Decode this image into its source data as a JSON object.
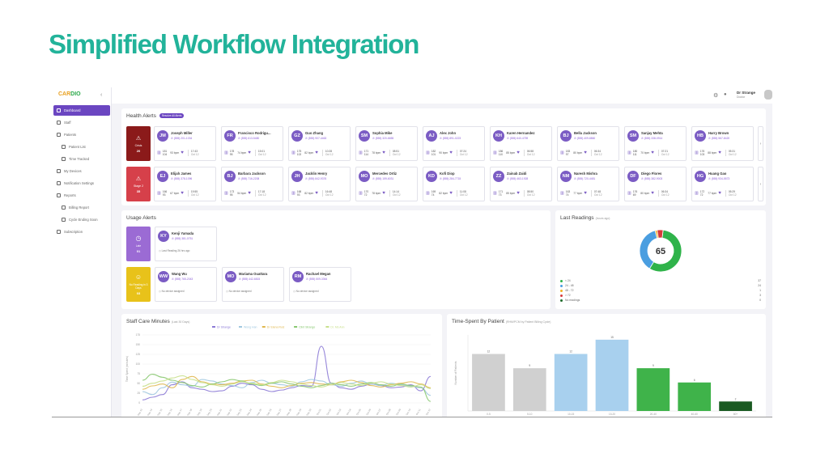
{
  "slide_title": "Simplified Workflow Integration",
  "sidebar": {
    "logo_a": "CAR",
    "logo_b": "DIO",
    "items": [
      {
        "label": "Dashboard",
        "active": true,
        "sub": false
      },
      {
        "label": "Staff",
        "active": false,
        "sub": false
      },
      {
        "label": "Patients",
        "active": false,
        "sub": false
      },
      {
        "label": "Patient List",
        "active": false,
        "sub": true
      },
      {
        "label": "Time Tracked",
        "active": false,
        "sub": true
      },
      {
        "label": "My Devices",
        "active": false,
        "sub": false
      },
      {
        "label": "Notification Settings",
        "active": false,
        "sub": false
      },
      {
        "label": "Reports",
        "active": false,
        "sub": false
      },
      {
        "label": "Billing Report",
        "active": false,
        "sub": true
      },
      {
        "label": "Cycle Ending Soon",
        "active": false,
        "sub": true
      },
      {
        "label": "Subscription",
        "active": false,
        "sub": false
      }
    ]
  },
  "topbar": {
    "user_name": "Dr Strange",
    "user_role": "Doctor"
  },
  "health_alerts": {
    "title": "Health Alerts",
    "pill": "Resolve All Alerts",
    "categories": [
      {
        "label": "Crisis",
        "count": "20",
        "color": "#8b1a1a"
      },
      {
        "label": "Stage 2",
        "count": "35",
        "color": "#d6404a"
      }
    ],
    "rows": [
      [
        {
          "initials": "JM",
          "name": "Joseph Miller",
          "phone": "(555) 201-1034",
          "sys": "181",
          "dia": "104",
          "hr": "93 bpm",
          "time": "17:43",
          "date": "Oct 12"
        },
        {
          "initials": "FR",
          "name": "Francisco Rodrigu...",
          "phone": "(555) 613-5480",
          "sys": "178",
          "dia": "95",
          "hr": "74 bpm",
          "time": "15:01",
          "date": "Oct 12"
        },
        {
          "initials": "GZ",
          "name": "Guo Zhang",
          "phone": "(555) 907-4463",
          "sys": "175",
          "dia": "102",
          "hr": "82 bpm",
          "time": "10:28",
          "date": "Oct 12"
        },
        {
          "initials": "SM",
          "name": "Sophia Mike",
          "phone": "(555) 320-6655",
          "sys": "171",
          "dia": "114",
          "hr": "78 bpm",
          "time": "08:51",
          "date": "Oct 12"
        },
        {
          "initials": "AJ",
          "name": "Alex John",
          "phone": "(555) 891-0223",
          "sys": "182",
          "dia": "101",
          "hr": "90 bpm",
          "time": "07:24",
          "date": "Oct 12"
        },
        {
          "initials": "KH",
          "name": "Karen Hernandez",
          "phone": "(555) 640-4759",
          "sys": "186",
          "dia": "110",
          "hr": "85 bpm",
          "time": "06:58",
          "date": "Oct 12"
        },
        {
          "initials": "BJ",
          "name": "Bella Jackson",
          "phone": "(555) 409-8860",
          "sys": "183",
          "dia": "97",
          "hr": "80 bpm",
          "time": "06:34",
          "date": "Oct 12"
        },
        {
          "initials": "SM",
          "name": "Sanjay Mehta",
          "phone": "(555) 338-0914",
          "sys": "180",
          "dia": "111",
          "hr": "70 bpm",
          "time": "07:21",
          "date": "Oct 12"
        },
        {
          "initials": "HB",
          "name": "Harry Brown",
          "phone": "(555) 567-8420",
          "sys": "176",
          "dia": "103",
          "hr": "88 bpm",
          "time": "05:31",
          "date": "Oct 12"
        }
      ],
      [
        {
          "initials": "EJ",
          "name": "Elijah James",
          "phone": "(555) 378-1096",
          "sys": "166",
          "dia": "93",
          "hr": "67 bpm",
          "time": "19:55",
          "date": "Oct 12"
        },
        {
          "initials": "BJ",
          "name": "Barbara Jackson",
          "phone": "(555) 716-2208",
          "sys": "173",
          "dia": "95",
          "hr": "54 bpm",
          "time": "17:18",
          "date": "Oct 12"
        },
        {
          "initials": "JH",
          "name": "Jacklin Henry",
          "phone": "(555) 842-9376",
          "sys": "168",
          "dia": "93",
          "hr": "82 bpm",
          "time": "16:48",
          "date": "Oct 12"
        },
        {
          "initials": "MO",
          "name": "Mercedes Ortiz",
          "phone": "(555) 159-6031",
          "sys": "170",
          "dia": "72",
          "hr": "78 bpm",
          "time": "14:14",
          "date": "Oct 12"
        },
        {
          "initials": "KD",
          "name": "Kofi Diop",
          "phone": "(555) 284-7715",
          "sys": "169",
          "dia": "74",
          "hr": "82 bpm",
          "time": "11:08",
          "date": "Oct 12"
        },
        {
          "initials": "ZZ",
          "name": "Zainab Zaidi",
          "phone": "(555) 463-1928",
          "sys": "171",
          "dia": "73",
          "hr": "85 bpm",
          "time": "08:50",
          "date": "Oct 12"
        },
        {
          "initials": "NM",
          "name": "Naresh Mishra",
          "phone": "(555) 720-4481",
          "sys": "163",
          "dia": "74",
          "hr": "77 bpm",
          "time": "07:48",
          "date": "Oct 12"
        },
        {
          "initials": "DF",
          "name": "Diego Flores",
          "phone": "(555) 382-9003",
          "sys": "176",
          "dia": "69",
          "hr": "80 bpm",
          "time": "06:34",
          "date": "Oct 12"
        },
        {
          "initials": "HG",
          "name": "Huang Gao",
          "phone": "(555) 934-5573",
          "sys": "172",
          "dia": "72",
          "hr": "77 bpm",
          "time": "05:29",
          "date": "Oct 12"
        }
      ]
    ]
  },
  "usage_alerts": {
    "title": "Usage Alerts",
    "categories": [
      {
        "label": "Late",
        "count": "01",
        "color": "#9b6bd4"
      },
      {
        "label": "No Reading in 3 Days",
        "count": "03",
        "color": "#e8c21a"
      }
    ],
    "rows": [
      [
        {
          "initials": "KY",
          "name": "Kenji Yamada",
          "phone": "(555) 381-0751",
          "note": "Last Reading 26 hrs ago"
        }
      ],
      [
        {
          "initials": "WW",
          "name": "Wang Wu",
          "phone": "(555) 765-2043",
          "note": "No device assigned"
        },
        {
          "initials": "MO",
          "name": "Mariama Ouattara",
          "phone": "(555) 442-6815",
          "note": "No device assigned"
        },
        {
          "initials": "RM",
          "name": "Rachael Megan",
          "phone": "(555) 509-3364",
          "note": "No device assigned"
        }
      ]
    ]
  },
  "last_readings": {
    "title": "Last Readings",
    "subtitle": "(hours ago)",
    "total": "65",
    "segments": [
      {
        "label": "< 24",
        "value": 37,
        "color": "#2fb34a"
      },
      {
        "label": "24 - 48",
        "value": 24,
        "color": "#4a9ee0"
      },
      {
        "label": "48 - 72",
        "value": 1,
        "color": "#f0b020"
      },
      {
        "label": "> 72",
        "value": 3,
        "color": "#d63a3a"
      },
      {
        "label": "No readings",
        "value": 0,
        "color": "#1e6b2a"
      }
    ],
    "legend_values": [
      "37",
      "24",
      "1",
      "3",
      "0"
    ]
  },
  "staff_minutes": {
    "title": "Staff Care Minutes",
    "subtitle": "(Last 30 Days)",
    "ylabel": "Time Spent (minutes)",
    "legend": [
      "Dr Strange",
      "Wong Han",
      "Dr Elena Ruiz",
      "Clint Strange",
      "Dr. Ms Ann"
    ],
    "colors": [
      "#8c7ad6",
      "#a0c8e0",
      "#e0b850",
      "#88c870",
      "#c8e08c"
    ],
    "x_labels": [
      "Sep 13",
      "Sep 14",
      "Sep 15",
      "Sep 16",
      "Sep 17",
      "Sep 18",
      "Sep 19",
      "Sep 20",
      "Sep 21",
      "Sep 22",
      "Sep 23",
      "Sep 24",
      "Sep 25",
      "Sep 26",
      "Sep 27",
      "Sep 28",
      "Sep 29",
      "Sep 30",
      "Oct 01",
      "Oct 02",
      "Oct 03",
      "Oct 04",
      "Oct 05",
      "Oct 06",
      "Oct 07",
      "Oct 08",
      "Oct 09",
      "Oct 10",
      "Oct 11",
      "Oct 12"
    ],
    "series": [
      [
        8,
        15,
        22,
        48,
        56,
        40,
        36,
        30,
        32,
        44,
        52,
        48,
        36,
        30,
        34,
        40,
        46,
        44,
        150,
        52,
        40,
        36,
        44,
        50,
        46,
        40,
        42,
        48,
        32,
        70
      ],
      [
        30,
        22,
        40,
        55,
        48,
        44,
        62,
        58,
        50,
        46,
        40,
        54,
        60,
        52,
        48,
        44,
        56,
        62,
        58,
        48,
        44,
        52,
        58,
        50,
        46,
        52,
        48,
        44,
        40,
        20
      ],
      [
        36,
        45,
        50,
        40,
        62,
        70,
        56,
        50,
        48,
        52,
        58,
        60,
        50,
        44,
        40,
        46,
        52,
        54,
        50,
        48,
        56,
        60,
        54,
        46,
        42,
        48,
        52,
        56,
        50,
        40
      ],
      [
        60,
        76,
        68,
        60,
        54,
        46,
        42,
        50,
        56,
        62,
        58,
        50,
        46,
        52,
        56,
        50,
        44,
        40,
        46,
        52,
        48,
        44,
        50,
        54,
        48,
        44,
        50,
        46,
        42,
        4
      ],
      [
        44,
        52,
        58,
        66,
        72,
        62,
        54,
        48,
        44,
        50,
        56,
        52,
        48,
        54,
        60,
        56,
        50,
        46,
        42,
        48,
        54,
        50,
        46,
        52,
        56,
        50,
        46,
        42,
        48,
        38
      ]
    ],
    "ylim": [
      0,
      180
    ],
    "yticks": [
      "0",
      "25",
      "50",
      "75",
      "100",
      "125",
      "150",
      "175"
    ]
  },
  "time_spent": {
    "title": "Time-Spent By Patient",
    "subtitle": "(RHM/PCM by Patient Billing Cycle)",
    "ylabel": "Number of Patients",
    "xlabel": "Time Spent (minutes)",
    "categories": [
      "0-5",
      "5-10",
      "10-15",
      "15-20",
      "20-40",
      "40-60",
      "60+"
    ],
    "values": [
      12,
      9,
      12,
      15,
      9,
      6,
      2
    ],
    "value_labels": [
      "12",
      "9",
      "12",
      "15",
      "9",
      "6",
      "2"
    ],
    "colors": [
      "#d0d0d0",
      "#d0d0d0",
      "#a8d0ee",
      "#a8d0ee",
      "#3fb34a",
      "#3fb34a",
      "#1a5a22"
    ],
    "ylim": [
      0,
      16
    ]
  }
}
